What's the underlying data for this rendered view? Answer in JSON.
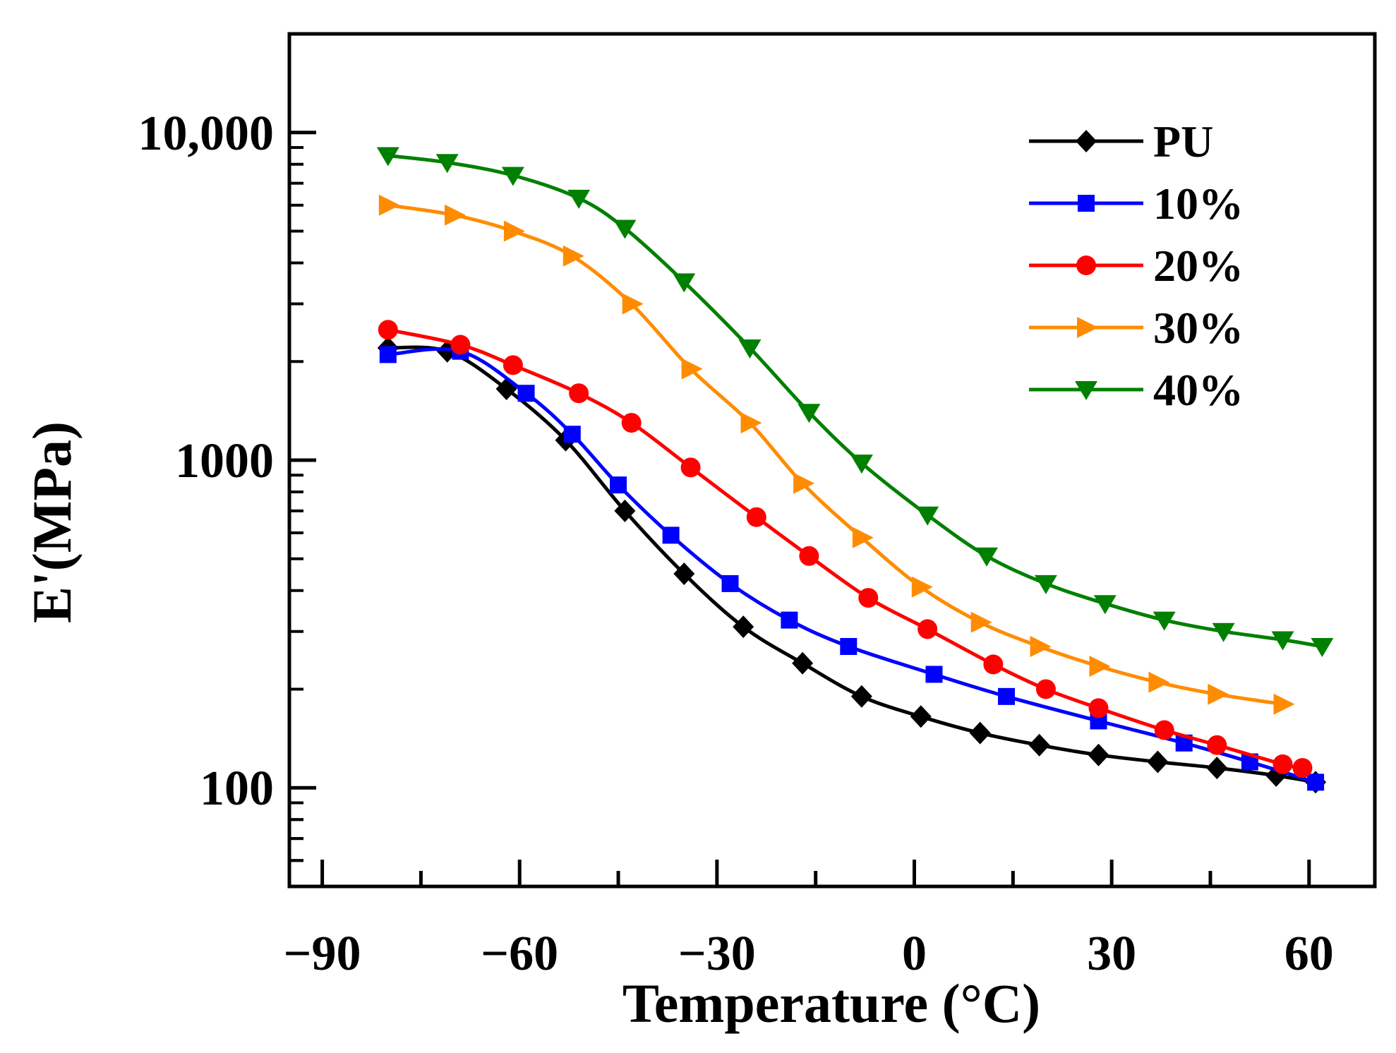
{
  "chart_data": {
    "type": "line",
    "title": "",
    "xlabel": "Temperature (°C)",
    "ylabel": "E'(MPa)",
    "x_range": [
      -95,
      70
    ],
    "x_ticks": [
      -90,
      -60,
      -30,
      0,
      30,
      60
    ],
    "x_tick_labels": [
      "−90",
      "−60",
      "−30",
      "0",
      "30",
      "60"
    ],
    "y_scale": "log",
    "y_range": [
      50,
      20000
    ],
    "y_ticks": [
      100,
      1000,
      10000
    ],
    "y_tick_labels": [
      "100",
      "1000",
      "10,000"
    ],
    "grid": false,
    "legend_position": "top-right",
    "series": [
      {
        "name": "PU",
        "color": "#000000",
        "marker": "diamond",
        "x": [
          -80,
          -71,
          -62,
          -53,
          -44,
          -35,
          -26,
          -17,
          -8,
          1,
          10,
          19,
          28,
          37,
          46,
          55,
          61
        ],
        "y": [
          2200,
          2150,
          1650,
          1150,
          700,
          450,
          310,
          240,
          190,
          165,
          147,
          135,
          126,
          120,
          115,
          109,
          104
        ]
      },
      {
        "name": "10%",
        "color": "#0000ff",
        "marker": "square",
        "x": [
          -80,
          -69,
          -59,
          -52,
          -45,
          -37,
          -28,
          -19,
          -10,
          3,
          14,
          28,
          41,
          51,
          61
        ],
        "y": [
          2100,
          2150,
          1600,
          1200,
          840,
          590,
          420,
          325,
          270,
          222,
          190,
          160,
          137,
          120,
          104
        ]
      },
      {
        "name": "20%",
        "color": "#ff0000",
        "marker": "circle",
        "x": [
          -80,
          -69,
          -61,
          -51,
          -43,
          -34,
          -24,
          -16,
          -7,
          2,
          12,
          20,
          28,
          38,
          46,
          56,
          59
        ],
        "y": [
          2500,
          2250,
          1950,
          1600,
          1300,
          950,
          670,
          510,
          380,
          305,
          238,
          200,
          175,
          150,
          135,
          118,
          115
        ]
      },
      {
        "name": "30%",
        "color": "#ff8c00",
        "marker": "triangle-right",
        "x": [
          -80,
          -70,
          -61,
          -52,
          -43,
          -34,
          -25,
          -17,
          -8,
          1,
          10,
          19,
          28,
          37,
          46,
          56
        ],
        "y": [
          6000,
          5600,
          5000,
          4200,
          3000,
          1900,
          1300,
          850,
          580,
          410,
          320,
          270,
          235,
          210,
          193,
          180
        ]
      },
      {
        "name": "40%",
        "color": "#008000",
        "marker": "triangle-down",
        "x": [
          -80,
          -71,
          -61,
          -51,
          -44,
          -35,
          -25,
          -16,
          -8,
          2,
          11,
          20,
          29,
          38,
          47,
          56,
          62
        ],
        "y": [
          8500,
          8100,
          7400,
          6300,
          5100,
          3500,
          2200,
          1400,
          980,
          680,
          510,
          420,
          365,
          325,
          300,
          283,
          270
        ]
      }
    ]
  }
}
